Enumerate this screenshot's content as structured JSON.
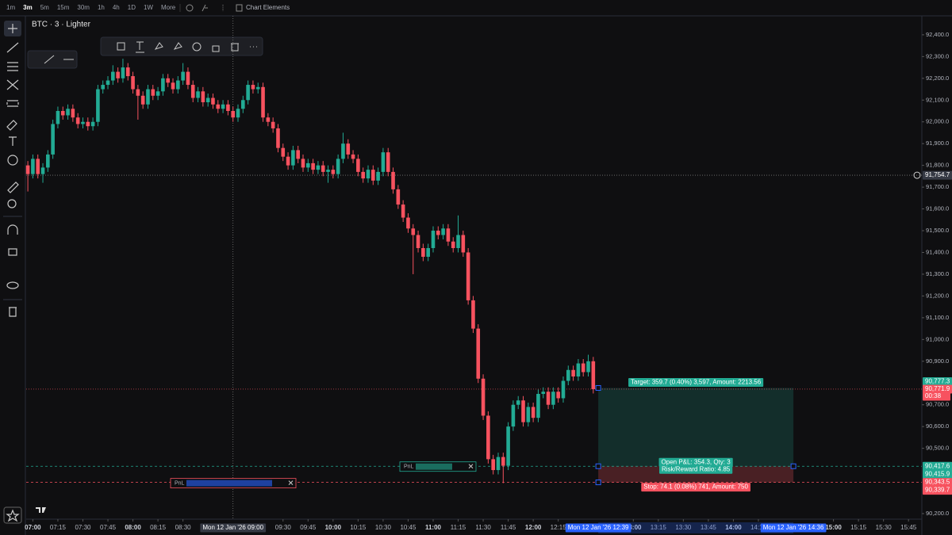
{
  "toolbar": {
    "intervals": [
      "1m",
      "3m",
      "5m",
      "15m",
      "30m",
      "1h",
      "4h",
      "1D",
      "1W",
      "More"
    ],
    "active_index": 1,
    "chart_elements": "Chart Elements"
  },
  "symbol": "BTC · 3 · Lighter",
  "chart_data": {
    "type": "candlestick",
    "up_color": "#22ab94",
    "down_color": "#f7525f",
    "x": [
      "06:57",
      "07:00",
      "07:03",
      "07:06",
      "07:09",
      "07:12",
      "07:15",
      "07:18",
      "07:21",
      "07:24",
      "07:27",
      "07:30",
      "07:33",
      "07:36",
      "07:39",
      "07:42",
      "07:45",
      "07:48",
      "07:51",
      "07:54",
      "07:57",
      "08:00",
      "08:03",
      "08:06",
      "08:09",
      "08:12",
      "08:15",
      "08:18",
      "08:21",
      "08:24",
      "08:27",
      "08:30",
      "08:33",
      "08:36",
      "08:39",
      "08:42",
      "08:45",
      "08:48",
      "08:51",
      "08:54",
      "08:57",
      "09:00",
      "09:03",
      "09:06",
      "09:09",
      "09:12",
      "09:15",
      "09:18",
      "09:21",
      "09:24",
      "09:27",
      "09:30",
      "09:33",
      "09:36",
      "09:39",
      "09:42",
      "09:45",
      "09:48",
      "09:51",
      "09:54",
      "09:57",
      "10:00",
      "10:03",
      "10:06",
      "10:09",
      "10:12",
      "10:15",
      "10:18",
      "10:21",
      "10:24",
      "10:27",
      "10:30",
      "10:33",
      "10:36",
      "10:39",
      "10:42",
      "10:45",
      "10:48",
      "10:51",
      "10:54",
      "10:57",
      "11:00",
      "11:03",
      "11:06",
      "11:09",
      "11:12",
      "11:15",
      "11:18",
      "11:21",
      "11:24",
      "11:27",
      "11:30",
      "11:33",
      "11:36",
      "11:39",
      "11:42",
      "11:45",
      "11:48",
      "11:51",
      "11:54",
      "11:57",
      "12:00",
      "12:03",
      "12:06",
      "12:09",
      "12:12",
      "12:15",
      "12:18",
      "12:21",
      "12:24",
      "12:27",
      "12:30",
      "12:33",
      "12:36"
    ],
    "open": [
      91800,
      91760,
      91830,
      91760,
      91790,
      91850,
      91990,
      92050,
      92030,
      92060,
      92020,
      91990,
      92000,
      91980,
      92000,
      92150,
      92170,
      92190,
      92230,
      92200,
      92250,
      92210,
      92150,
      92120,
      92080,
      92150,
      92120,
      92140,
      92200,
      92180,
      92150,
      92190,
      92230,
      92170,
      92110,
      92140,
      92090,
      92110,
      92080,
      92060,
      92080,
      92050,
      92020,
      92060,
      92100,
      92170,
      92150,
      92160,
      92020,
      92000,
      91970,
      91880,
      91840,
      91800,
      91870,
      91830,
      91790,
      91810,
      91780,
      91800,
      91770,
      91780,
      91760,
      91830,
      91900,
      91850,
      91830,
      91770,
      91740,
      91780,
      91730,
      91770,
      91860,
      91770,
      91690,
      91620,
      91560,
      91510,
      91480,
      91420,
      91380,
      91420,
      91500,
      91480,
      91510,
      91450,
      91420,
      91480,
      91400,
      91180,
      91050,
      90820,
      90650,
      90450,
      90400,
      90460,
      90420,
      90600,
      90700,
      90720,
      90620,
      90690,
      90640,
      90750,
      90760,
      90700,
      90760,
      90730,
      90810,
      90860,
      90830,
      90890,
      90850,
      90900
    ],
    "high": [
      91820,
      91850,
      91850,
      91810,
      91870,
      92010,
      92070,
      92070,
      92080,
      92080,
      92040,
      92020,
      92020,
      92020,
      92170,
      92190,
      92210,
      92260,
      92250,
      92290,
      92270,
      92230,
      92170,
      92140,
      92170,
      92170,
      92160,
      92220,
      92220,
      92200,
      92210,
      92270,
      92250,
      92190,
      92160,
      92160,
      92130,
      92130,
      92100,
      92100,
      92100,
      92070,
      92080,
      92120,
      92190,
      92190,
      92180,
      92180,
      92040,
      92020,
      91990,
      91900,
      91860,
      91890,
      91890,
      91850,
      91830,
      91830,
      91820,
      91820,
      91800,
      91800,
      91850,
      91950,
      91920,
      91870,
      91850,
      91790,
      91800,
      91800,
      91790,
      91880,
      91880,
      91790,
      91710,
      91640,
      91580,
      91530,
      91500,
      91440,
      91440,
      91520,
      91520,
      91530,
      91530,
      91470,
      91570,
      91500,
      91420,
      91200,
      91070,
      90840,
      90670,
      90470,
      90480,
      90480,
      90620,
      90720,
      90740,
      90740,
      90710,
      90710,
      90770,
      90780,
      90780,
      90780,
      90780,
      90830,
      90880,
      90880,
      90910,
      90910,
      90930,
      90920
    ],
    "low": [
      91680,
      91740,
      91740,
      91720,
      91770,
      91830,
      91970,
      92010,
      92010,
      92000,
      91970,
      91970,
      91960,
      91960,
      91980,
      92130,
      92150,
      92170,
      92180,
      92180,
      92190,
      92130,
      92010,
      92060,
      92060,
      92100,
      92100,
      92120,
      92160,
      92130,
      92130,
      92170,
      92150,
      92090,
      92090,
      92070,
      92070,
      92060,
      92040,
      92040,
      92030,
      92000,
      92000,
      92040,
      92080,
      92130,
      92130,
      92000,
      91980,
      91950,
      91860,
      91820,
      91780,
      91780,
      91810,
      91770,
      91770,
      91760,
      91760,
      91750,
      91720,
      91740,
      91740,
      91810,
      91830,
      91810,
      91750,
      91720,
      91720,
      91710,
      91710,
      91750,
      91750,
      91670,
      91600,
      91540,
      91490,
      91300,
      91400,
      91360,
      91360,
      91400,
      91460,
      91460,
      91430,
      91400,
      91400,
      91380,
      91160,
      91030,
      90800,
      90630,
      90430,
      90380,
      90380,
      90340,
      90400,
      90580,
      90680,
      90600,
      90600,
      90620,
      90620,
      90730,
      90680,
      90680,
      90710,
      90710,
      90790,
      90810,
      90810,
      90830,
      90830,
      90751.9
    ],
    "close": [
      91760,
      91830,
      91760,
      91790,
      91850,
      91990,
      92050,
      92030,
      92060,
      92020,
      91990,
      92000,
      91980,
      92000,
      92150,
      92170,
      92190,
      92230,
      92200,
      92250,
      92210,
      92150,
      92120,
      92080,
      92150,
      92120,
      92140,
      92200,
      92180,
      92150,
      92190,
      92230,
      92170,
      92110,
      92140,
      92090,
      92110,
      92080,
      92060,
      92080,
      92050,
      92020,
      92060,
      92100,
      92170,
      92150,
      92160,
      92020,
      92000,
      91970,
      91880,
      91840,
      91800,
      91870,
      91830,
      91790,
      91810,
      91780,
      91800,
      91770,
      91780,
      91760,
      91830,
      91900,
      91850,
      91830,
      91770,
      91740,
      91780,
      91730,
      91770,
      91860,
      91770,
      91690,
      91620,
      91560,
      91510,
      91480,
      91420,
      91380,
      91420,
      91500,
      91480,
      91510,
      91450,
      91420,
      91480,
      91400,
      91180,
      91050,
      90820,
      90650,
      90450,
      90400,
      90460,
      90420,
      90600,
      90700,
      90720,
      90620,
      90690,
      90640,
      90750,
      90760,
      90700,
      90760,
      90730,
      90810,
      90860,
      90830,
      90890,
      90850,
      90900,
      90771.9
    ],
    "xlim": [
      "06:56",
      "15:53"
    ],
    "xticks": [
      "07:00",
      "07:15",
      "07:30",
      "07:45",
      "08:00",
      "08:15",
      "08:30",
      "09:30",
      "09:45",
      "10:00",
      "10:15",
      "10:30",
      "10:45",
      "11:00",
      "11:15",
      "11:30",
      "11:45",
      "12:00",
      "12:15",
      "13:00",
      "13:15",
      "13:30",
      "13:45",
      "14:00",
      "14:15",
      "15:00",
      "15:15",
      "15:30",
      "15:45"
    ],
    "ylim": [
      90174.5,
      92487
    ],
    "yticks": [
      {
        "value": 92400,
        "label": "92,400.0"
      },
      {
        "value": 92300,
        "label": "92,300.0"
      },
      {
        "value": 92200,
        "label": "92,200.0"
      },
      {
        "value": 92100,
        "label": "92,100.0"
      },
      {
        "value": 92000,
        "label": "92,000.0"
      },
      {
        "value": 91900,
        "label": "91,900.0"
      },
      {
        "value": 91800,
        "label": "91,800.0"
      },
      {
        "value": 91700,
        "label": "91,700.0"
      },
      {
        "value": 91600,
        "label": "91,600.0"
      },
      {
        "value": 91500,
        "label": "91,500.0"
      },
      {
        "value": 91400,
        "label": "91,400.0"
      },
      {
        "value": 91300,
        "label": "91,300.0"
      },
      {
        "value": 91200,
        "label": "91,200.0"
      },
      {
        "value": 91100,
        "label": "91,100.0"
      },
      {
        "value": 91000,
        "label": "91,000.0"
      },
      {
        "value": 90900,
        "label": "90,900.0"
      },
      {
        "value": 90700,
        "label": "90,700.0"
      },
      {
        "value": 90600,
        "label": "90,600.0"
      },
      {
        "value": 90500,
        "label": "90,500.0"
      },
      {
        "value": 90200,
        "label": "90,200.0"
      }
    ],
    "crosshair": {
      "price": {
        "value": 91754.7,
        "label": "91,754.7"
      },
      "time_label": "Mon 12 Jan '26 09:00"
    },
    "last_price": {
      "value": 90771.9,
      "label": "90,771.9",
      "countdown": "00:38"
    },
    "position": {
      "start_label": "Mon 12 Jan '26 12:39",
      "end_label": "Mon 12 Jan '26 14:36",
      "target": {
        "value": 90777.3,
        "label": "90,777.3"
      },
      "entry": {
        "value": 90417.6,
        "label": "90,417.6"
      },
      "stop": {
        "value": 90343.5,
        "label": "90,343.5"
      },
      "target_text": "Target: 359.7 (0.40%) 3,597, Amount: 2213.56",
      "pnl_text": "Open P&L: 354.3, Qty: 3",
      "rr_text": "Risk/Reward Ratio: 4.85",
      "stop_text": "Stop: 74.1 (0.08%) 741, Amount: 750"
    },
    "orders": [
      {
        "value": 90415.9,
        "label": "90,415.9",
        "color": "#22ab94"
      },
      {
        "value": 90339.7,
        "label": "90,339.7",
        "color": "#f7525f"
      }
    ],
    "order_label": "PnL"
  }
}
